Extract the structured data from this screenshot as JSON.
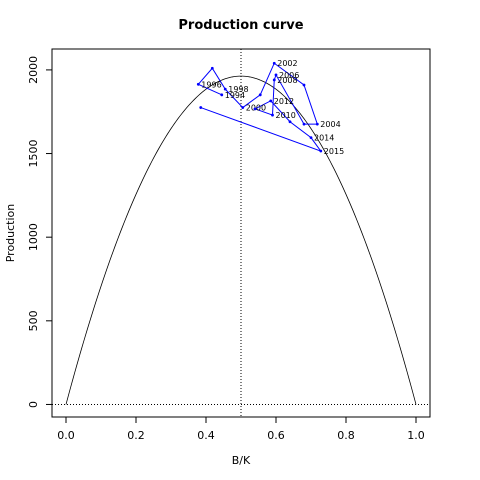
{
  "chart_data": {
    "type": "line",
    "title": "Production curve",
    "xlabel": "B/K",
    "ylabel": "Production",
    "xlim": [
      -0.04,
      1.04
    ],
    "ylim": [
      -75,
      2125
    ],
    "x_ticks": [
      0.0,
      0.2,
      0.4,
      0.6,
      0.8,
      1.0
    ],
    "x_tick_labels": [
      "0.0",
      "0.2",
      "0.4",
      "0.6",
      "0.8",
      "1.0"
    ],
    "y_ticks": [
      0,
      500,
      1000,
      1500,
      2000
    ],
    "y_tick_labels": [
      "0",
      "500",
      "1000",
      "1500",
      "2000"
    ],
    "curve": {
      "type": "parabola",
      "x_range": [
        0,
        1
      ],
      "peak_x": 0.5,
      "peak_y": 1963
    },
    "reference_lines": {
      "vertical_x": 0.5,
      "horizontal_y": 0
    },
    "series": [
      {
        "color": "#0000ff",
        "points": [
          {
            "x": 0.445,
            "y": 1851,
            "label": "1994"
          },
          {
            "x": 0.378,
            "y": 1914,
            "label": "1996"
          },
          {
            "x": 0.418,
            "y": 2010,
            "label": ""
          },
          {
            "x": 0.455,
            "y": 1885,
            "label": "1998"
          },
          {
            "x": 0.505,
            "y": 1775,
            "label": "2000"
          },
          {
            "x": 0.555,
            "y": 1851,
            "label": ""
          },
          {
            "x": 0.595,
            "y": 2040,
            "label": "2002"
          },
          {
            "x": 0.68,
            "y": 1910,
            "label": ""
          },
          {
            "x": 0.718,
            "y": 1676,
            "label": "2004"
          },
          {
            "x": 0.68,
            "y": 1676,
            "label": ""
          },
          {
            "x": 0.6,
            "y": 1970,
            "label": "2006"
          },
          {
            "x": 0.595,
            "y": 1940,
            "label": "2008"
          },
          {
            "x": 0.59,
            "y": 1730,
            "label": "2010"
          },
          {
            "x": 0.54,
            "y": 1767,
            "label": ""
          },
          {
            "x": 0.585,
            "y": 1815,
            "label": "2012"
          },
          {
            "x": 0.64,
            "y": 1690,
            "label": ""
          },
          {
            "x": 0.7,
            "y": 1595,
            "label": "2014"
          },
          {
            "x": 0.728,
            "y": 1515,
            "label": "2015"
          },
          {
            "x": 0.385,
            "y": 1775,
            "label": ""
          }
        ]
      }
    ]
  }
}
